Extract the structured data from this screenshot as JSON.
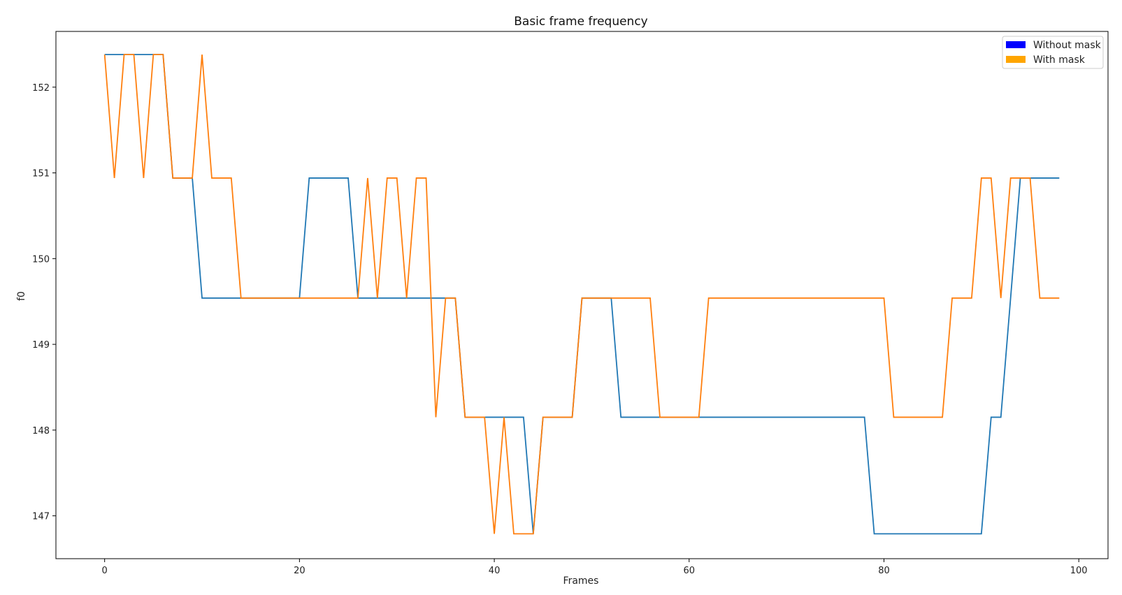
{
  "chart_data": {
    "type": "line",
    "title": "Basic frame frequency",
    "xlabel": "Frames",
    "ylabel": "f0",
    "xlim": [
      -5,
      103
    ],
    "ylim": [
      146.5,
      152.65
    ],
    "xticks": [
      0,
      20,
      40,
      60,
      80,
      100
    ],
    "yticks": [
      147,
      148,
      149,
      150,
      151,
      152
    ],
    "grid": false,
    "legend": {
      "placement": "top-right",
      "entries": [
        {
          "label": "Without mask",
          "color": "#0000ff"
        },
        {
          "label": "With mask",
          "color": "#ffa500"
        }
      ]
    },
    "x": [
      0,
      1,
      2,
      3,
      4,
      5,
      6,
      7,
      8,
      9,
      10,
      11,
      12,
      13,
      14,
      15,
      16,
      17,
      18,
      19,
      20,
      21,
      22,
      23,
      24,
      25,
      26,
      27,
      28,
      29,
      30,
      31,
      32,
      33,
      34,
      35,
      36,
      37,
      38,
      39,
      40,
      41,
      42,
      43,
      44,
      45,
      46,
      47,
      48,
      49,
      50,
      51,
      52,
      53,
      54,
      55,
      56,
      57,
      58,
      59,
      60,
      61,
      62,
      63,
      64,
      65,
      66,
      67,
      68,
      69,
      70,
      71,
      72,
      73,
      74,
      75,
      76,
      77,
      78,
      79,
      80,
      81,
      82,
      83,
      84,
      85,
      86,
      87,
      88,
      89,
      90,
      91,
      92,
      93,
      94,
      95,
      96,
      97,
      98
    ],
    "series": [
      {
        "name": "Without mask",
        "color": "#1f77b4",
        "values": [
          152.38,
          152.38,
          152.38,
          152.38,
          152.38,
          152.38,
          152.38,
          150.94,
          150.94,
          150.94,
          149.54,
          149.54,
          149.54,
          149.54,
          149.54,
          149.54,
          149.54,
          149.54,
          149.54,
          149.54,
          149.54,
          150.94,
          150.94,
          150.94,
          150.94,
          150.94,
          149.54,
          149.54,
          149.54,
          149.54,
          149.54,
          149.54,
          149.54,
          149.54,
          149.54,
          149.54,
          149.54,
          148.15,
          148.15,
          148.15,
          148.15,
          148.15,
          148.15,
          148.15,
          146.79,
          148.15,
          148.15,
          148.15,
          148.15,
          149.54,
          149.54,
          149.54,
          149.54,
          148.15,
          148.15,
          148.15,
          148.15,
          148.15,
          148.15,
          148.15,
          148.15,
          148.15,
          148.15,
          148.15,
          148.15,
          148.15,
          148.15,
          148.15,
          148.15,
          148.15,
          148.15,
          148.15,
          148.15,
          148.15,
          148.15,
          148.15,
          148.15,
          148.15,
          148.15,
          146.79,
          146.79,
          146.79,
          146.79,
          146.79,
          146.79,
          146.79,
          146.79,
          146.79,
          146.79,
          146.79,
          146.79,
          148.15,
          148.15,
          149.54,
          150.94,
          150.94,
          150.94,
          150.94,
          150.94
        ]
      },
      {
        "name": "With mask",
        "color": "#ff7f0e",
        "values": [
          152.38,
          150.94,
          152.38,
          152.38,
          150.94,
          152.38,
          152.38,
          150.94,
          150.94,
          150.94,
          152.38,
          150.94,
          150.94,
          150.94,
          149.54,
          149.54,
          149.54,
          149.54,
          149.54,
          149.54,
          149.54,
          149.54,
          149.54,
          149.54,
          149.54,
          149.54,
          149.54,
          150.94,
          149.54,
          150.94,
          150.94,
          149.54,
          150.94,
          150.94,
          148.15,
          149.54,
          149.54,
          148.15,
          148.15,
          148.15,
          146.79,
          148.15,
          146.79,
          146.79,
          146.79,
          148.15,
          148.15,
          148.15,
          148.15,
          149.54,
          149.54,
          149.54,
          149.54,
          149.54,
          149.54,
          149.54,
          149.54,
          148.15,
          148.15,
          148.15,
          148.15,
          148.15,
          149.54,
          149.54,
          149.54,
          149.54,
          149.54,
          149.54,
          149.54,
          149.54,
          149.54,
          149.54,
          149.54,
          149.54,
          149.54,
          149.54,
          149.54,
          149.54,
          149.54,
          149.54,
          149.54,
          148.15,
          148.15,
          148.15,
          148.15,
          148.15,
          148.15,
          149.54,
          149.54,
          149.54,
          150.94,
          150.94,
          149.54,
          150.94,
          150.94,
          150.94,
          149.54,
          149.54,
          149.54
        ]
      }
    ]
  }
}
